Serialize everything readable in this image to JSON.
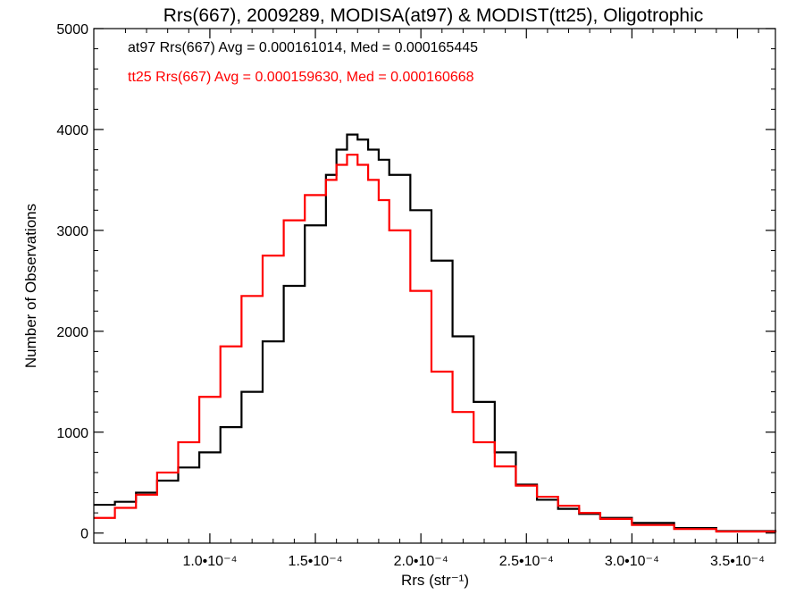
{
  "chart_data": {
    "type": "line",
    "title": "Rrs(667), 2009289, MODISA(at97) & MODIST(tt25), Oligotrophic",
    "xlabel": "Rrs (str⁻¹)",
    "ylabel": "Number of Observations",
    "xlim": [
      4.5e-06,
      3.68e-05
    ],
    "ylim": [
      -100,
      5000
    ],
    "y_ticks": [
      0,
      1000,
      2000,
      3000,
      4000,
      5000
    ],
    "x_ticks": [
      0.0001,
      0.00015,
      0.0002,
      0.00025,
      0.0003,
      0.00035
    ],
    "x_tick_labels": [
      "1.0•10⁻⁴",
      "1.5•10⁻⁴",
      "2.0•10⁻⁴",
      "2.5•10⁻⁴",
      "3.0•10⁻⁴",
      "3.5•10⁻⁴"
    ],
    "annotations": [
      "at97 Rrs(667) Avg = 0.000161014, Med = 0.000165445",
      "tt25 Rrs(667) Avg = 0.000159630, Med = 0.000160668"
    ],
    "colors": {
      "at97": "#000000",
      "tt25": "#ff0000"
    },
    "series": [
      {
        "key": "at97",
        "color": "#000000",
        "x": [
          4.5e-05,
          5.5e-05,
          6.5e-05,
          7.5e-05,
          8.5e-05,
          9.5e-05,
          0.000105,
          0.000115,
          0.000125,
          0.000135,
          0.000145,
          0.000155,
          0.00016,
          0.000165,
          0.00017,
          0.000175,
          0.00018,
          0.000185,
          0.000195,
          0.000205,
          0.000215,
          0.000225,
          0.000235,
          0.000245,
          0.000255,
          0.000265,
          0.000275,
          0.000285,
          0.0003,
          0.00032,
          0.00034,
          0.000368
        ],
        "y": [
          280,
          310,
          400,
          520,
          650,
          800,
          1050,
          1400,
          1900,
          2450,
          3050,
          3550,
          3800,
          3950,
          3900,
          3800,
          3700,
          3550,
          3200,
          2700,
          1950,
          1300,
          800,
          480,
          330,
          240,
          190,
          150,
          100,
          50,
          20,
          10
        ]
      },
      {
        "key": "tt25",
        "color": "#ff0000",
        "x": [
          4.5e-05,
          5.5e-05,
          6.5e-05,
          7.5e-05,
          8.5e-05,
          9.5e-05,
          0.000105,
          0.000115,
          0.000125,
          0.000135,
          0.000145,
          0.000155,
          0.00016,
          0.000165,
          0.00017,
          0.000175,
          0.00018,
          0.000185,
          0.000195,
          0.000205,
          0.000215,
          0.000225,
          0.000235,
          0.000245,
          0.000255,
          0.000265,
          0.000275,
          0.000285,
          0.0003,
          0.00032,
          0.00034,
          0.000368
        ],
        "y": [
          150,
          250,
          380,
          600,
          900,
          1350,
          1850,
          2350,
          2750,
          3100,
          3350,
          3500,
          3650,
          3750,
          3650,
          3500,
          3300,
          3000,
          2400,
          1600,
          1200,
          900,
          660,
          470,
          360,
          270,
          200,
          140,
          80,
          40,
          15,
          5
        ]
      }
    ]
  }
}
